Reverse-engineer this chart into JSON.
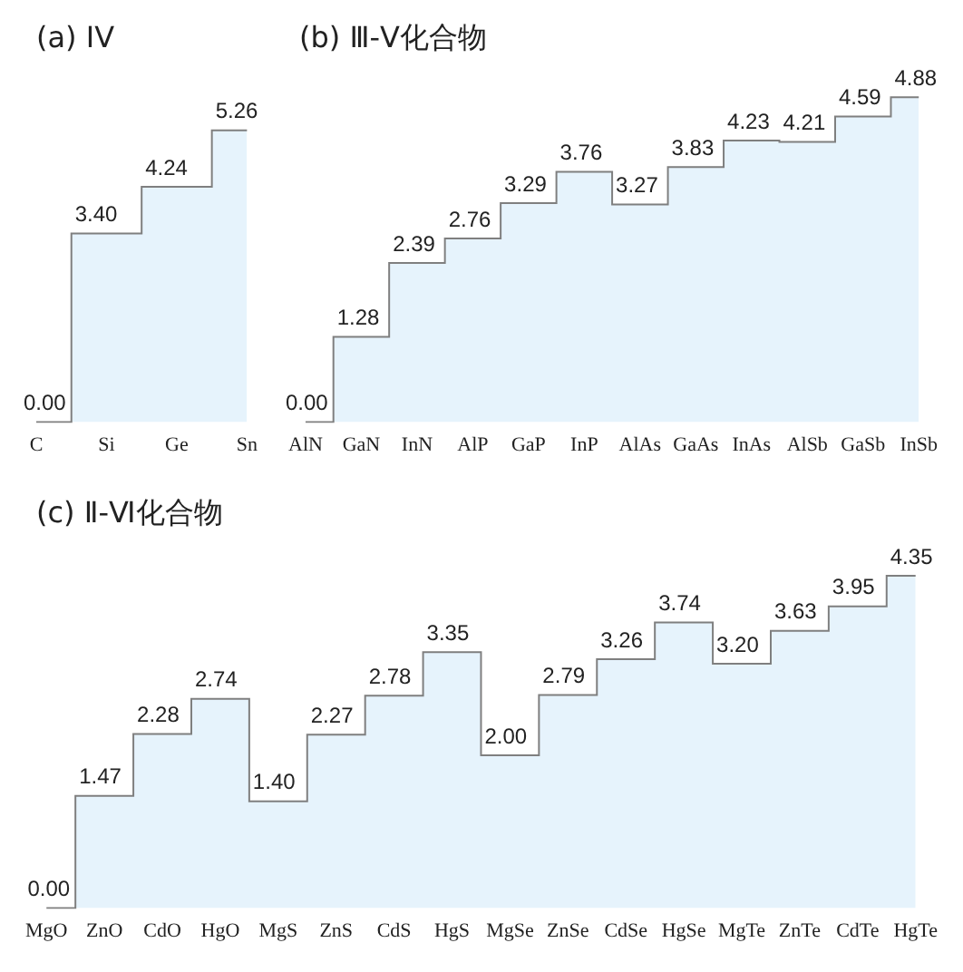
{
  "chart_data": [
    {
      "type": "step",
      "title": "(a) IV",
      "categories": [
        "C",
        "Si",
        "Ge",
        "Sn"
      ],
      "series": [
        {
          "color": "#7f7f7f",
          "values": [
            0.0,
            3.4,
            4.24,
            5.26
          ],
          "value_labels": [
            "0.00",
            "3.40",
            "4.24",
            "5.26"
          ]
        }
      ],
      "grid": false,
      "legend": false,
      "tick_labels": "x"
    },
    {
      "type": "step",
      "title": "(b) Ⅲ-Ⅴ化合物",
      "categories": [
        "AlN",
        "GaN",
        "InN",
        "AlP",
        "GaP",
        "InP",
        "AlAs",
        "GaAs",
        "InAs",
        "AlSb",
        "GaSb",
        "InSb"
      ],
      "series": [
        {
          "color": "#7f7f7f",
          "values": [
            0.0,
            1.28,
            2.39,
            2.76,
            3.29,
            3.76,
            3.27,
            3.83,
            4.23,
            4.21,
            4.59,
            4.88
          ],
          "value_labels": [
            "0.00",
            "1.28",
            "2.39",
            "2.76",
            "3.29",
            "3.76",
            "3.27",
            "3.83",
            "4.23",
            "4.21",
            "4.59",
            "4.88"
          ]
        }
      ],
      "grid": false,
      "legend": false,
      "tick_labels": "x"
    },
    {
      "type": "step",
      "title": "(c) Ⅱ-Ⅵ化合物",
      "categories": [
        "MgO",
        "ZnO",
        "CdO",
        "HgO",
        "MgS",
        "ZnS",
        "CdS",
        "HgS",
        "MgSe",
        "ZnSe",
        "CdSe",
        "HgSe",
        "MgTe",
        "ZnTe",
        "CdTe",
        "HgTe"
      ],
      "series": [
        {
          "color": "#7f7f7f",
          "values": [
            0.0,
            1.47,
            2.28,
            2.74,
            1.4,
            2.27,
            2.78,
            3.35,
            2.0,
            2.79,
            3.26,
            3.74,
            3.2,
            3.63,
            3.95,
            4.35
          ],
          "value_labels": [
            "0.00",
            "1.47",
            "2.28",
            "2.74",
            "1.40",
            "2.27",
            "2.78",
            "3.35",
            "2.00",
            "2.79",
            "3.26",
            "3.74",
            "3.20",
            "3.63",
            "3.95",
            "4.35"
          ]
        }
      ],
      "grid": false,
      "legend": false,
      "tick_labels": "x"
    }
  ]
}
